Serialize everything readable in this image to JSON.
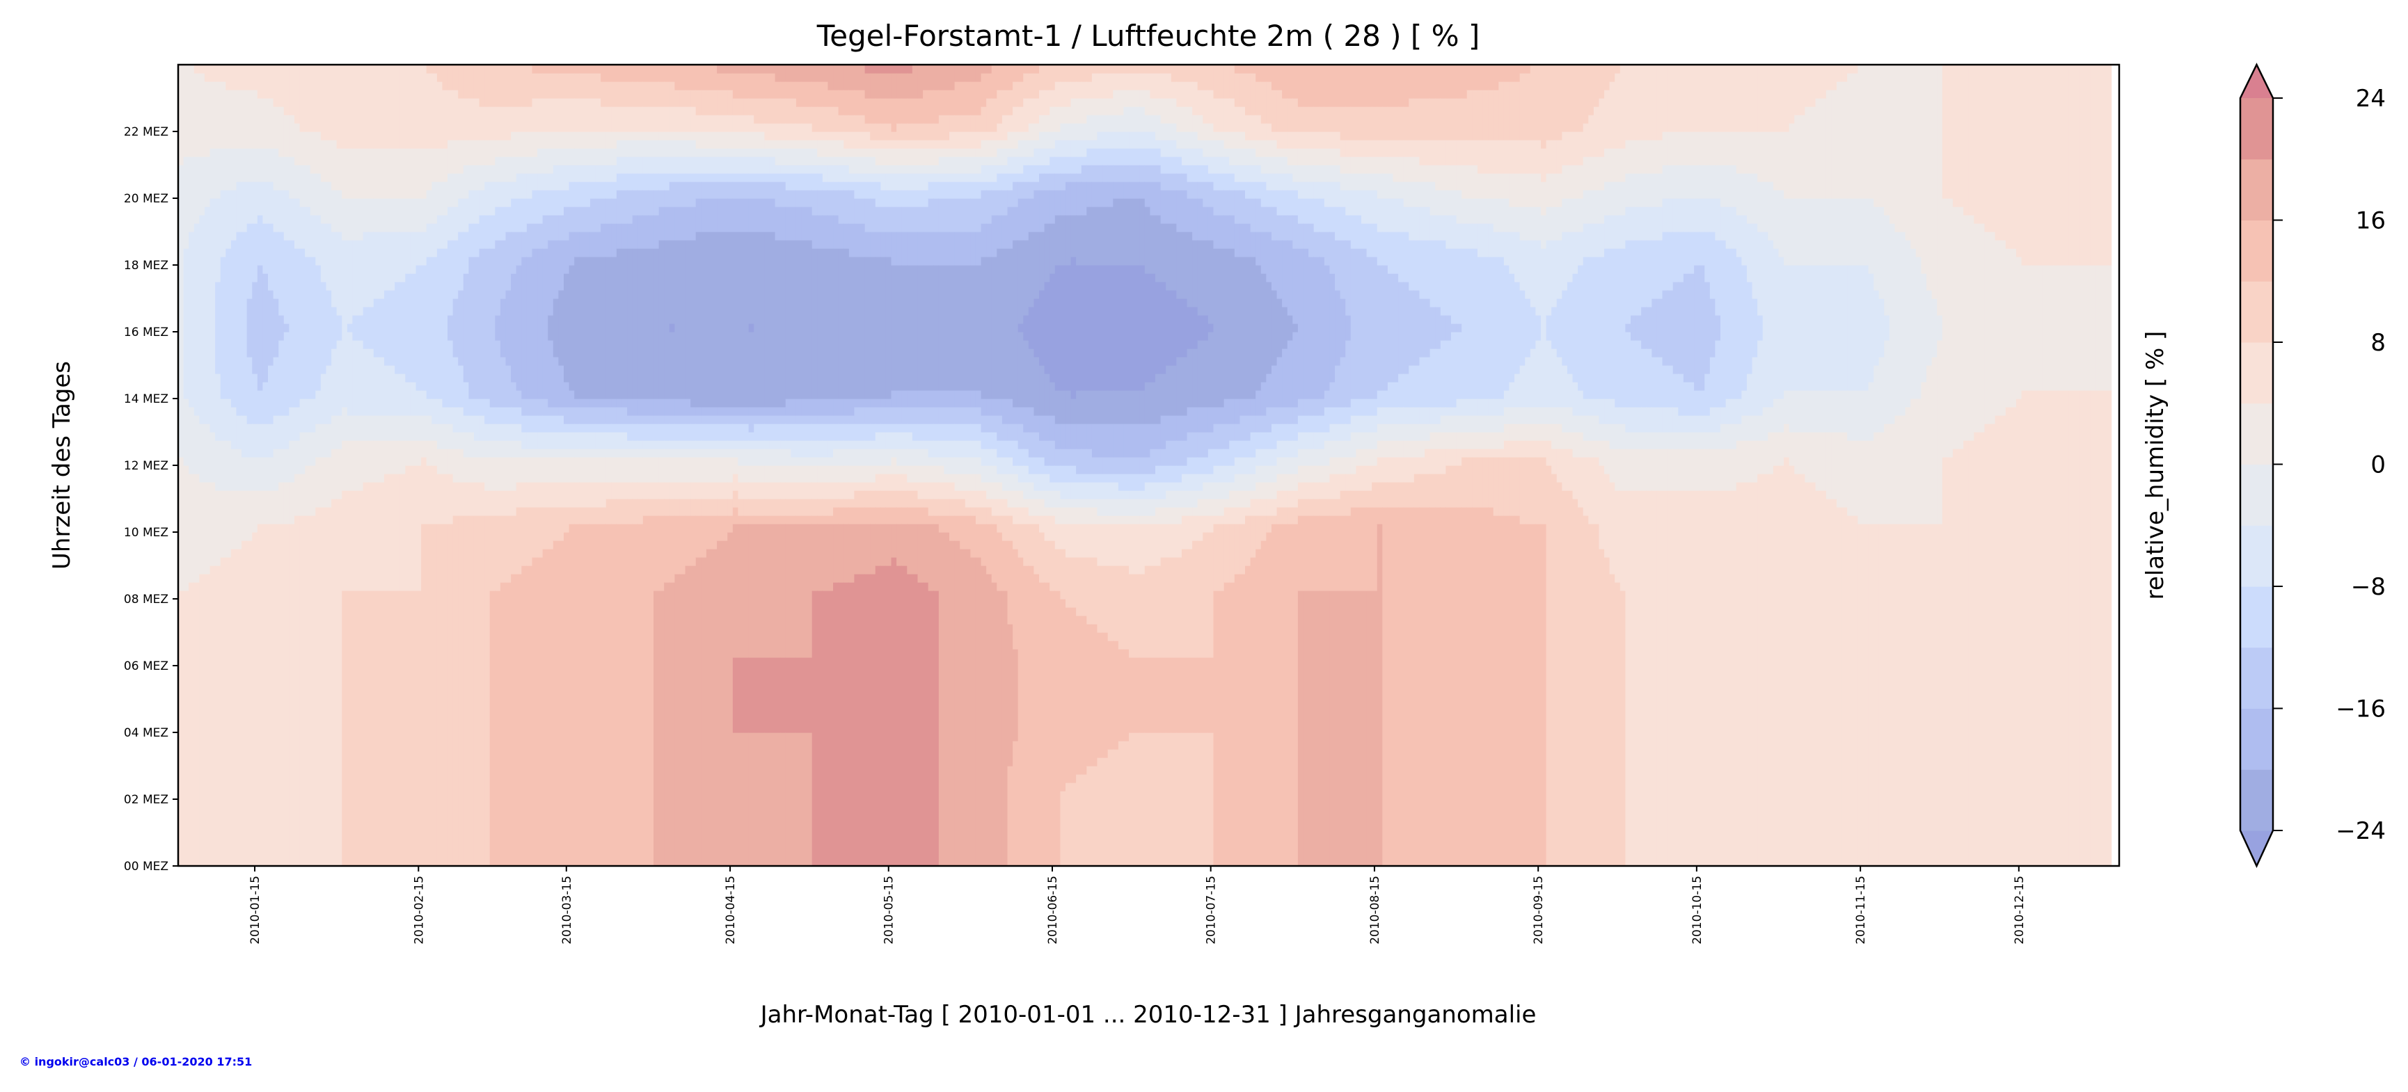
{
  "chart_data": {
    "type": "heatmap",
    "title": "Tegel-Forstamt-1 / Luftfeuchte 2m ( 28 ) [ % ]",
    "xlabel": "Jahr-Monat-Tag [ 2010-01-01 ... 2010-12-31 ] Jahresganganomalie",
    "ylabel": "Uhrzeit des Tages",
    "colorbar_label": "relative_humidity [ % ]",
    "colormap": "coolwarm",
    "grid": false,
    "xlim": [
      "2010-01-01",
      "2011-01-03"
    ],
    "ylim": [
      0,
      24
    ],
    "x_ticks": [
      "2010-01-15",
      "2010-02-15",
      "2010-03-15",
      "2010-04-15",
      "2010-05-15",
      "2010-06-15",
      "2010-07-15",
      "2010-08-15",
      "2010-09-15",
      "2010-10-15",
      "2010-11-15",
      "2010-12-15"
    ],
    "y_ticks": [
      {
        "value": 0,
        "label": "00 MEZ"
      },
      {
        "value": 2,
        "label": "02 MEZ"
      },
      {
        "value": 4,
        "label": "04 MEZ"
      },
      {
        "value": 6,
        "label": "06 MEZ"
      },
      {
        "value": 8,
        "label": "08 MEZ"
      },
      {
        "value": 10,
        "label": "10 MEZ"
      },
      {
        "value": 12,
        "label": "12 MEZ"
      },
      {
        "value": 14,
        "label": "14 MEZ"
      },
      {
        "value": 16,
        "label": "16 MEZ"
      },
      {
        "value": 18,
        "label": "18 MEZ"
      },
      {
        "value": 20,
        "label": "20 MEZ"
      },
      {
        "value": 22,
        "label": "22 MEZ"
      }
    ],
    "colorbar": {
      "levels": [
        -24,
        -20,
        -16,
        -12,
        -8,
        -4,
        0,
        4,
        8,
        12,
        16,
        20,
        24
      ],
      "tick_values": [
        -24,
        -16,
        -8,
        0,
        8,
        16,
        24
      ],
      "tick_labels": [
        "−24",
        "−16",
        "−8",
        "0",
        "8",
        "16",
        "24"
      ],
      "extend": "both",
      "colors": [
        "#98a2e0",
        "#a0ade2",
        "#afbdf0",
        "#bccbf6",
        "#ccdcfc",
        "#dce7f8",
        "#e6eaf0",
        "#f0e9e6",
        "#f9e1d8",
        "#f9d3c6",
        "#f6c2b4",
        "#ecafa4",
        "#e09494",
        "#d98090"
      ]
    },
    "hours": [
      0,
      2,
      4,
      6,
      8,
      10,
      12,
      14,
      16,
      18,
      20,
      22
    ],
    "dates": [
      "2010-01-01",
      "2010-01-16",
      "2010-02-01",
      "2010-02-16",
      "2010-03-01",
      "2010-03-16",
      "2010-04-01",
      "2010-04-16",
      "2010-05-01",
      "2010-05-16",
      "2010-06-01",
      "2010-06-16",
      "2010-07-01",
      "2010-07-16",
      "2010-08-01",
      "2010-08-16",
      "2010-09-01",
      "2010-09-16",
      "2010-10-01",
      "2010-10-16",
      "2010-11-01",
      "2010-11-16",
      "2010-12-01",
      "2010-12-16",
      "2010-12-31"
    ],
    "values": [
      [
        4,
        4,
        4,
        4,
        4,
        2,
        0,
        -4,
        -4,
        -4,
        -2,
        2
      ],
      [
        6,
        6,
        6,
        6,
        6,
        4,
        -4,
        -12,
        -14,
        -12,
        -6,
        2
      ],
      [
        8,
        8,
        8,
        8,
        8,
        6,
        2,
        -6,
        -8,
        -6,
        0,
        6
      ],
      [
        8,
        8,
        8,
        8,
        8,
        8,
        4,
        -8,
        -10,
        -8,
        0,
        6
      ],
      [
        12,
        12,
        12,
        12,
        12,
        10,
        0,
        -14,
        -16,
        -14,
        -6,
        6
      ],
      [
        14,
        14,
        14,
        14,
        14,
        12,
        0,
        -20,
        -22,
        -20,
        -10,
        4
      ],
      [
        16,
        16,
        16,
        16,
        16,
        14,
        0,
        -22,
        -24,
        -22,
        -14,
        4
      ],
      [
        18,
        18,
        20,
        20,
        18,
        16,
        0,
        -24,
        -24,
        -24,
        -16,
        6
      ],
      [
        20,
        20,
        20,
        20,
        20,
        16,
        -2,
        -22,
        -24,
        -22,
        -14,
        8
      ],
      [
        22,
        22,
        22,
        22,
        22,
        18,
        0,
        -20,
        -22,
        -20,
        -10,
        12
      ],
      [
        18,
        18,
        18,
        18,
        18,
        14,
        -4,
        -20,
        -22,
        -20,
        -12,
        10
      ],
      [
        12,
        12,
        14,
        14,
        12,
        6,
        -14,
        -24,
        -26,
        -24,
        -18,
        0
      ],
      [
        10,
        10,
        12,
        12,
        10,
        4,
        -16,
        -24,
        -26,
        -24,
        -20,
        -4
      ],
      [
        12,
        12,
        12,
        12,
        12,
        8,
        -10,
        -22,
        -24,
        -22,
        -14,
        4
      ],
      [
        16,
        16,
        16,
        16,
        16,
        14,
        -2,
        -18,
        -20,
        -18,
        -8,
        10
      ],
      [
        16,
        16,
        16,
        16,
        16,
        16,
        4,
        -12,
        -14,
        -12,
        -4,
        10
      ],
      [
        14,
        14,
        14,
        14,
        14,
        14,
        8,
        -10,
        -12,
        -10,
        0,
        10
      ],
      [
        12,
        12,
        12,
        12,
        12,
        12,
        8,
        -6,
        -8,
        -6,
        2,
        10
      ],
      [
        8,
        8,
        8,
        8,
        8,
        6,
        2,
        -10,
        -12,
        -10,
        -2,
        6
      ],
      [
        6,
        6,
        6,
        6,
        6,
        6,
        2,
        -12,
        -14,
        -12,
        -4,
        4
      ],
      [
        6,
        6,
        6,
        6,
        6,
        6,
        4,
        -4,
        -6,
        -4,
        0,
        4
      ],
      [
        4,
        4,
        4,
        4,
        4,
        4,
        2,
        -4,
        -6,
        -4,
        0,
        2
      ],
      [
        4,
        4,
        4,
        4,
        4,
        4,
        4,
        2,
        0,
        2,
        4,
        4
      ],
      [
        6,
        6,
        6,
        6,
        6,
        6,
        6,
        4,
        2,
        4,
        6,
        6
      ],
      [
        6,
        6,
        6,
        6,
        6,
        6,
        6,
        4,
        2,
        4,
        6,
        6
      ]
    ]
  },
  "footer": {
    "credit": "© ingokir@calc03 / 06-01-2020 17:51"
  }
}
